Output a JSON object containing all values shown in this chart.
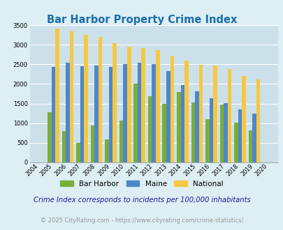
{
  "title": "Bar Harbor Property Crime Index",
  "years": [
    2004,
    2005,
    2006,
    2007,
    2008,
    2009,
    2010,
    2011,
    2012,
    2013,
    2014,
    2015,
    2016,
    2017,
    2018,
    2019,
    2020
  ],
  "bar_harbor": [
    0,
    1270,
    790,
    500,
    940,
    580,
    1070,
    2000,
    1680,
    1490,
    1800,
    1530,
    1100,
    1480,
    1010,
    820,
    0
  ],
  "maine": [
    0,
    2440,
    2540,
    2460,
    2470,
    2440,
    2500,
    2550,
    2510,
    2320,
    1980,
    1820,
    1640,
    1510,
    1350,
    1240,
    0
  ],
  "national": [
    0,
    3420,
    3340,
    3260,
    3210,
    3040,
    2950,
    2910,
    2860,
    2720,
    2600,
    2490,
    2470,
    2380,
    2200,
    2110,
    0
  ],
  "bar_harbor_color": "#7aad3a",
  "maine_color": "#4f86c8",
  "national_color": "#f5c842",
  "bg_color": "#ddeef5",
  "plot_bg_color": "#cce0ea",
  "ylim": [
    0,
    3500
  ],
  "yticks": [
    0,
    500,
    1000,
    1500,
    2000,
    2500,
    3000,
    3500
  ],
  "legend_labels": [
    "Bar Harbor",
    "Maine",
    "National"
  ],
  "footnote1": "Crime Index corresponds to incidents per 100,000 inhabitants",
  "footnote2": "© 2025 CityRating.com - https://www.cityrating.com/crime-statistics/",
  "title_color": "#1a6fa8",
  "footnote1_color": "#1a1a99",
  "footnote2_color": "#999999"
}
